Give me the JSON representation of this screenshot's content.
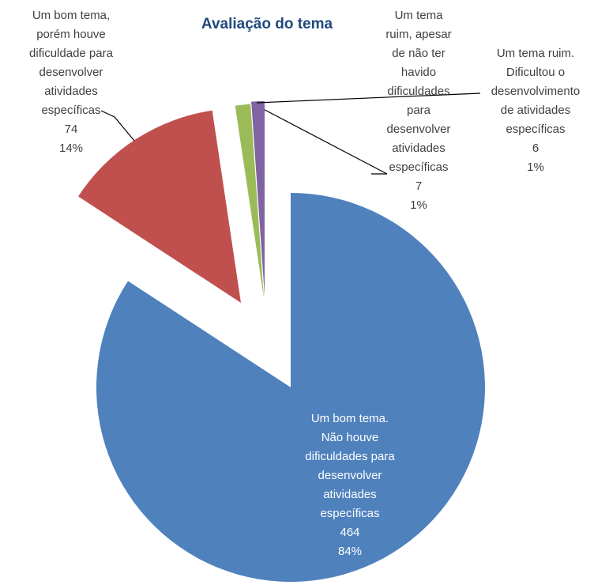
{
  "chart_data": {
    "type": "pie",
    "title": "Avaliação do tema",
    "categories": [
      "Um bom tema.\nNão houve\ndificuldades para\ndesenvolver\natividades\nespecíficas",
      "Um bom tema,\nporém houve\ndificuldade para\ndesenvolver\natividades\nespecíficas",
      "Um tema\nruim, apesar\nde não ter\nhavido\ndificuldades\npara\ndesenvolver\natividades\nespecíficas",
      "Um tema ruim.\nDificultou  o\ndesenvolvimento\nde atividades\nespecíficas"
    ],
    "values": [
      464,
      74,
      7,
      6
    ],
    "percent_labels": [
      "84%",
      "14%",
      "1%",
      "1%"
    ],
    "colors": [
      "#4f81bd",
      "#c0504d",
      "#9bbb59",
      "#8064a2"
    ]
  }
}
